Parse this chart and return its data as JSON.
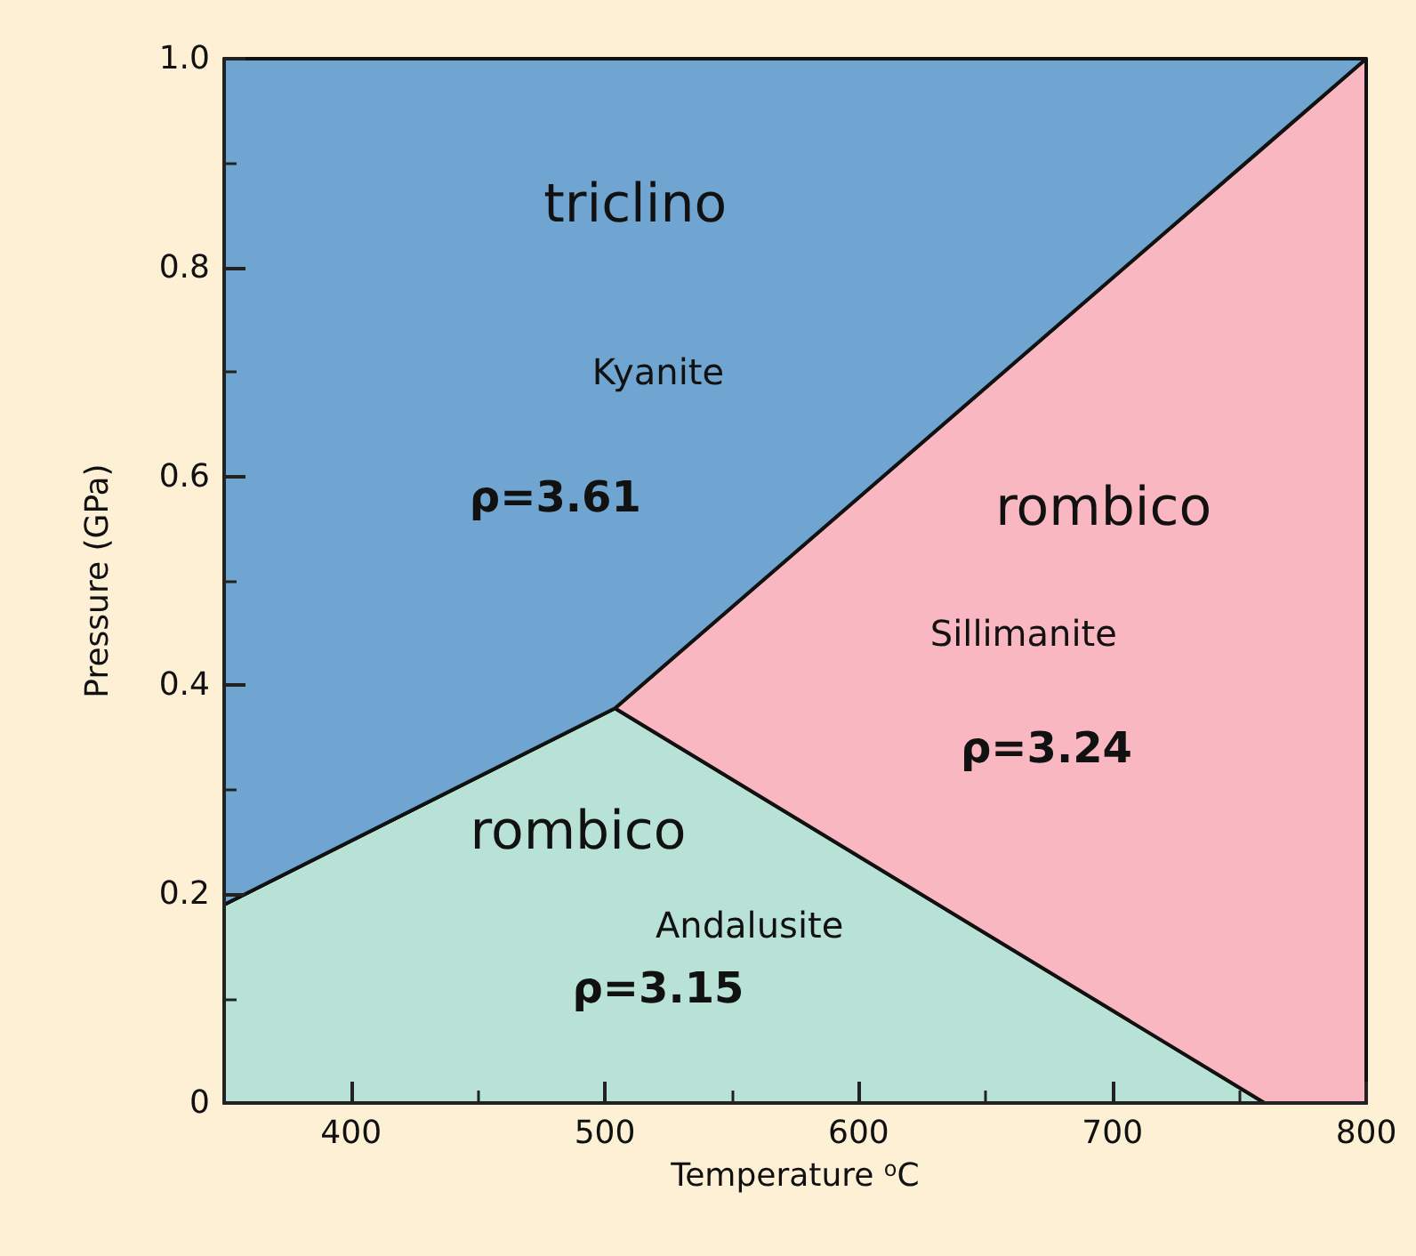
{
  "chart_data": {
    "type": "area",
    "stacked": true,
    "xlabel": "Temperature $^{o}$C",
    "ylabel": "Pressure (GPa)",
    "xlim": [
      350,
      800
    ],
    "xticks": [
      400,
      500,
      600,
      700,
      800
    ],
    "ylim": [
      0,
      1.0
    ],
    "yticks": [
      0,
      0.2,
      0.4,
      0.6,
      0.8,
      {
        "value": 1.0,
        "label": "1.0"
      }
    ],
    "x": [
      350,
      504,
      760,
      800
    ],
    "series": [
      {
        "color": "#b8e2d6",
        "values": [
          0.19,
          0.378,
          0,
          0
        ]
      },
      {
        "color": "#f9b8c1",
        "values": [
          0,
          0,
          0.916,
          1.0
        ]
      },
      {
        "color": "#6fa5d0",
        "values": [
          0.81,
          0.622,
          0.084,
          0
        ]
      }
    ],
    "annotations": [
      "triclino",
      "Kyanite",
      "ρ=3.61",
      "rombico",
      "Sillimanite",
      "ρ=3.24",
      "rombico",
      "Andalusite",
      "ρ=3.15"
    ]
  }
}
